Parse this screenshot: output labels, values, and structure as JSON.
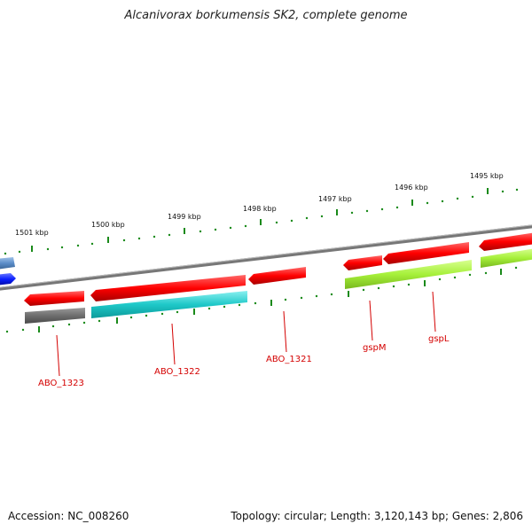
{
  "title": "Alcanivorax borkumensis SK2, complete genome",
  "footer": {
    "accession": "Accession: NC_008260",
    "summary": "Topology: circular; Length: 3,120,143 bp; Genes: 2,806"
  },
  "scale_labels": [
    "1501 kbp",
    "1500 kbp",
    "1499 kbp",
    "1498 kbp",
    "1497 kbp",
    "1496 kbp",
    "1495 kbp"
  ],
  "gene_labels": [
    "ABO_1323",
    "ABO_1322",
    "ABO_1321",
    "gspM",
    "gspL"
  ],
  "colors": {
    "backbone": "#808080",
    "cds_forward": "#ff0000",
    "gene_gray": "#6e6e6e",
    "gene_cyan": "#1ec8c8",
    "gene_lime": "#a6f03a",
    "gene_blue": "#0a1eff",
    "gene_steelblue": "#5a8cc8",
    "tick": "#1a8a1a",
    "label": "#d40000"
  }
}
